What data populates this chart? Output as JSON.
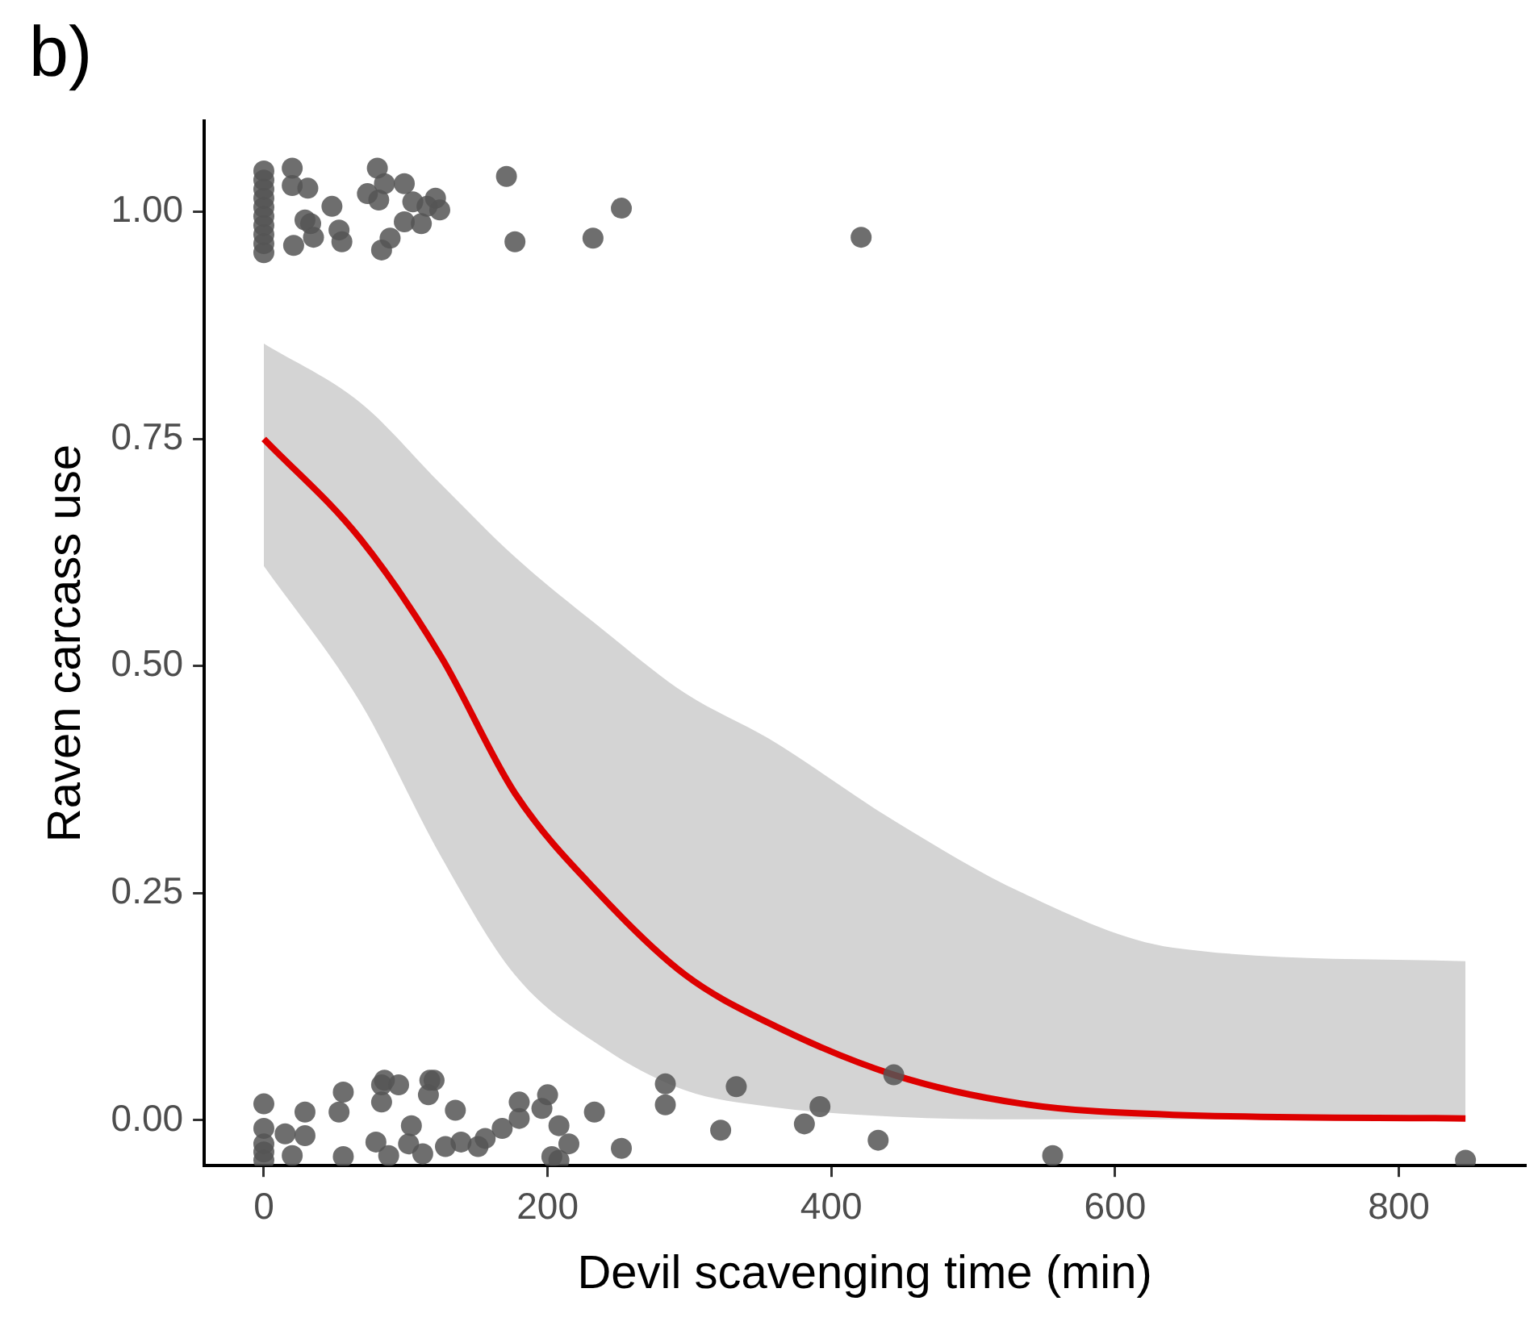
{
  "chart_data": {
    "type": "scatter",
    "xlabel": "Devil scavenging time (min)",
    "ylabel": "Raven carcass use",
    "annotations": [
      "b)"
    ],
    "xlim": [
      -42,
      889
    ],
    "ylim": [
      -0.05,
      1.1
    ],
    "xticks": [
      0,
      200,
      400,
      600,
      800
    ],
    "yticks": [
      {
        "value": 0,
        "label": "0.00"
      },
      {
        "value": 0.25,
        "label": "0.25"
      },
      {
        "value": 0.5,
        "label": "0.50"
      },
      {
        "value": 0.75,
        "label": "0.75"
      },
      {
        "value": 1,
        "label": "1.00"
      }
    ],
    "grid": false,
    "legend": false,
    "series": [
      {
        "type": "scatter",
        "marker": "circle",
        "color": "#555555",
        "x": [
          0,
          0,
          0,
          0,
          0,
          0,
          0,
          0,
          0,
          0,
          20,
          20,
          31,
          48,
          29,
          33,
          35,
          21,
          53,
          55,
          80,
          73,
          85,
          81,
          99,
          105,
          121,
          124,
          115,
          99,
          111,
          89,
          83,
          171,
          177,
          232,
          252,
          421,
          0,
          0,
          0,
          0,
          0,
          15,
          29,
          29,
          20,
          56,
          53,
          56,
          83,
          85,
          95,
          83,
          79,
          88,
          102,
          104,
          112,
          117,
          120,
          116,
          135,
          128,
          139,
          151,
          156,
          168,
          180,
          180,
          196,
          200,
          208,
          215,
          203,
          208,
          233,
          252,
          283,
          283,
          322,
          333,
          381,
          392,
          433,
          444,
          556,
          847
        ],
        "values": [
          0.955,
          0.965,
          0.975,
          0.985,
          0.995,
          1.005,
          1.015,
          1.025,
          1.035,
          1.045,
          1.048,
          1.029,
          1.026,
          1.006,
          0.991,
          0.987,
          0.972,
          0.963,
          0.98,
          0.967,
          1.048,
          1.02,
          1.031,
          1.013,
          1.031,
          1.011,
          1.015,
          1.002,
          1.006,
          0.989,
          0.987,
          0.971,
          0.958,
          1.039,
          0.967,
          0.971,
          1.004,
          0.972,
          0.018,
          -0.009,
          -0.026,
          -0.035,
          -0.044,
          -0.015,
          0.009,
          -0.017,
          -0.039,
          0.031,
          0.009,
          -0.04,
          0.039,
          0.044,
          0.039,
          0.02,
          -0.024,
          -0.039,
          -0.026,
          -0.006,
          -0.037,
          0.044,
          0.044,
          0.028,
          0.011,
          -0.029,
          -0.024,
          -0.029,
          -0.02,
          -0.009,
          0.02,
          0.002,
          0.013,
          0.028,
          -0.006,
          -0.026,
          -0.04,
          -0.044,
          0.009,
          -0.031,
          0.04,
          0.017,
          -0.011,
          0.037,
          -0.004,
          0.015,
          -0.022,
          0.05,
          -0.039,
          -0.044
        ]
      },
      {
        "type": "line",
        "marker": "none",
        "color": "#dd0000",
        "x": [
          0,
          68,
          125,
          177,
          239,
          297,
          356,
          444,
          535,
          641,
          847
        ],
        "values": [
          0.75,
          0.64,
          0.51,
          0.36,
          0.245,
          0.16,
          0.107,
          0.05,
          0.018,
          0.006,
          0.002
        ],
        "lower": [
          0.61,
          0.46,
          0.29,
          0.16,
          0.08,
          0.033,
          0.015,
          0.004,
          0.001,
          0.001,
          0
        ],
        "upper": [
          0.855,
          0.79,
          0.7,
          0.62,
          0.54,
          0.47,
          0.42,
          0.33,
          0.25,
          0.19,
          0.175
        ]
      }
    ]
  }
}
